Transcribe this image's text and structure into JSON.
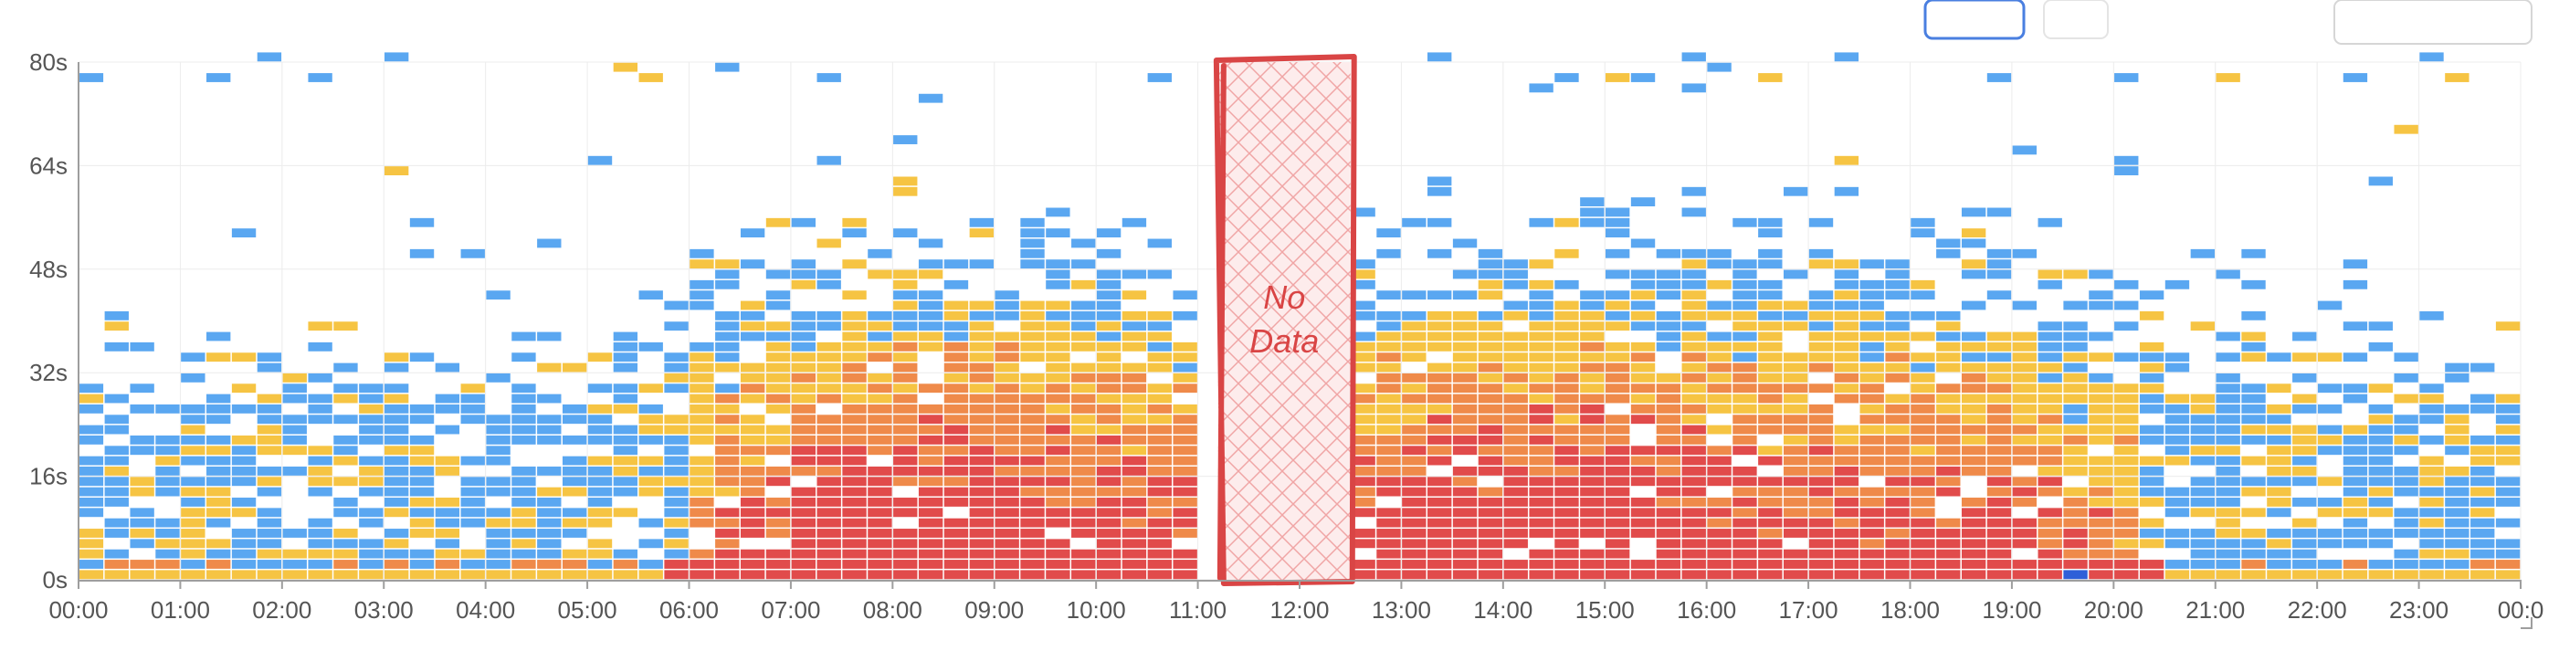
{
  "chart_data": {
    "type": "heatmap",
    "title": "",
    "xlabel": "",
    "ylabel": "",
    "x_ticks": [
      "00:00",
      "01:00",
      "02:00",
      "03:00",
      "04:00",
      "05:00",
      "06:00",
      "07:00",
      "08:00",
      "09:00",
      "10:00",
      "11:00",
      "12:00",
      "13:00",
      "14:00",
      "15:00",
      "16:00",
      "17:00",
      "18:00",
      "19:00",
      "20:00",
      "21:00",
      "22:00",
      "23:00",
      "00:0"
    ],
    "y_ticks": [
      "0s",
      "16s",
      "32s",
      "48s",
      "64s",
      "80s"
    ],
    "y_tick_values": [
      0,
      16,
      32,
      48,
      64,
      80
    ],
    "x_range_hours": [
      0,
      24
    ],
    "y_range_seconds": [
      0,
      80
    ],
    "bin_minutes": 15,
    "bin_seconds": 1.6,
    "grid": true,
    "colors": {
      "low": "#5aa7f1",
      "mid": "#f6c443",
      "high": "#ef8a4a",
      "very_high": "#e14b4b",
      "peak": "#2e5fd8",
      "axis": "#9e9e9e",
      "gridline": "#ececec",
      "annotation": "#d94545"
    },
    "gap": {
      "start_hour": 11.2,
      "end_hour": 12.5,
      "label": "No Data",
      "label_lines": [
        "No",
        "Data"
      ]
    },
    "max_density_seconds_by_hour": [
      {
        "hour": 0,
        "max_dense": 22,
        "max_sparse": 42
      },
      {
        "hour": 1,
        "max_dense": 22,
        "max_sparse": 42
      },
      {
        "hour": 2,
        "max_dense": 24,
        "max_sparse": 40
      },
      {
        "hour": 3,
        "max_dense": 22,
        "max_sparse": 42
      },
      {
        "hour": 4,
        "max_dense": 22,
        "max_sparse": 40
      },
      {
        "hour": 5,
        "max_dense": 26,
        "max_sparse": 46
      },
      {
        "hour": 6,
        "max_dense": 36,
        "max_sparse": 52
      },
      {
        "hour": 7,
        "max_dense": 40,
        "max_sparse": 58
      },
      {
        "hour": 8,
        "max_dense": 42,
        "max_sparse": 64
      },
      {
        "hour": 9,
        "max_dense": 42,
        "max_sparse": 64
      },
      {
        "hour": 10,
        "max_dense": 42,
        "max_sparse": 64
      },
      {
        "hour": 11,
        "max_dense": 40,
        "max_sparse": 62
      },
      {
        "hour": 13,
        "max_dense": 40,
        "max_sparse": 62
      },
      {
        "hour": 14,
        "max_dense": 42,
        "max_sparse": 64
      },
      {
        "hour": 15,
        "max_dense": 42,
        "max_sparse": 64
      },
      {
        "hour": 16,
        "max_dense": 42,
        "max_sparse": 64
      },
      {
        "hour": 17,
        "max_dense": 42,
        "max_sparse": 64
      },
      {
        "hour": 18,
        "max_dense": 40,
        "max_sparse": 60
      },
      {
        "hour": 19,
        "max_dense": 36,
        "max_sparse": 58
      },
      {
        "hour": 20,
        "max_dense": 30,
        "max_sparse": 52
      },
      {
        "hour": 21,
        "max_dense": 28,
        "max_sparse": 50
      },
      {
        "hour": 22,
        "max_dense": 26,
        "max_sparse": 50
      },
      {
        "hour": 23,
        "max_dense": 24,
        "max_sparse": 44
      }
    ]
  }
}
